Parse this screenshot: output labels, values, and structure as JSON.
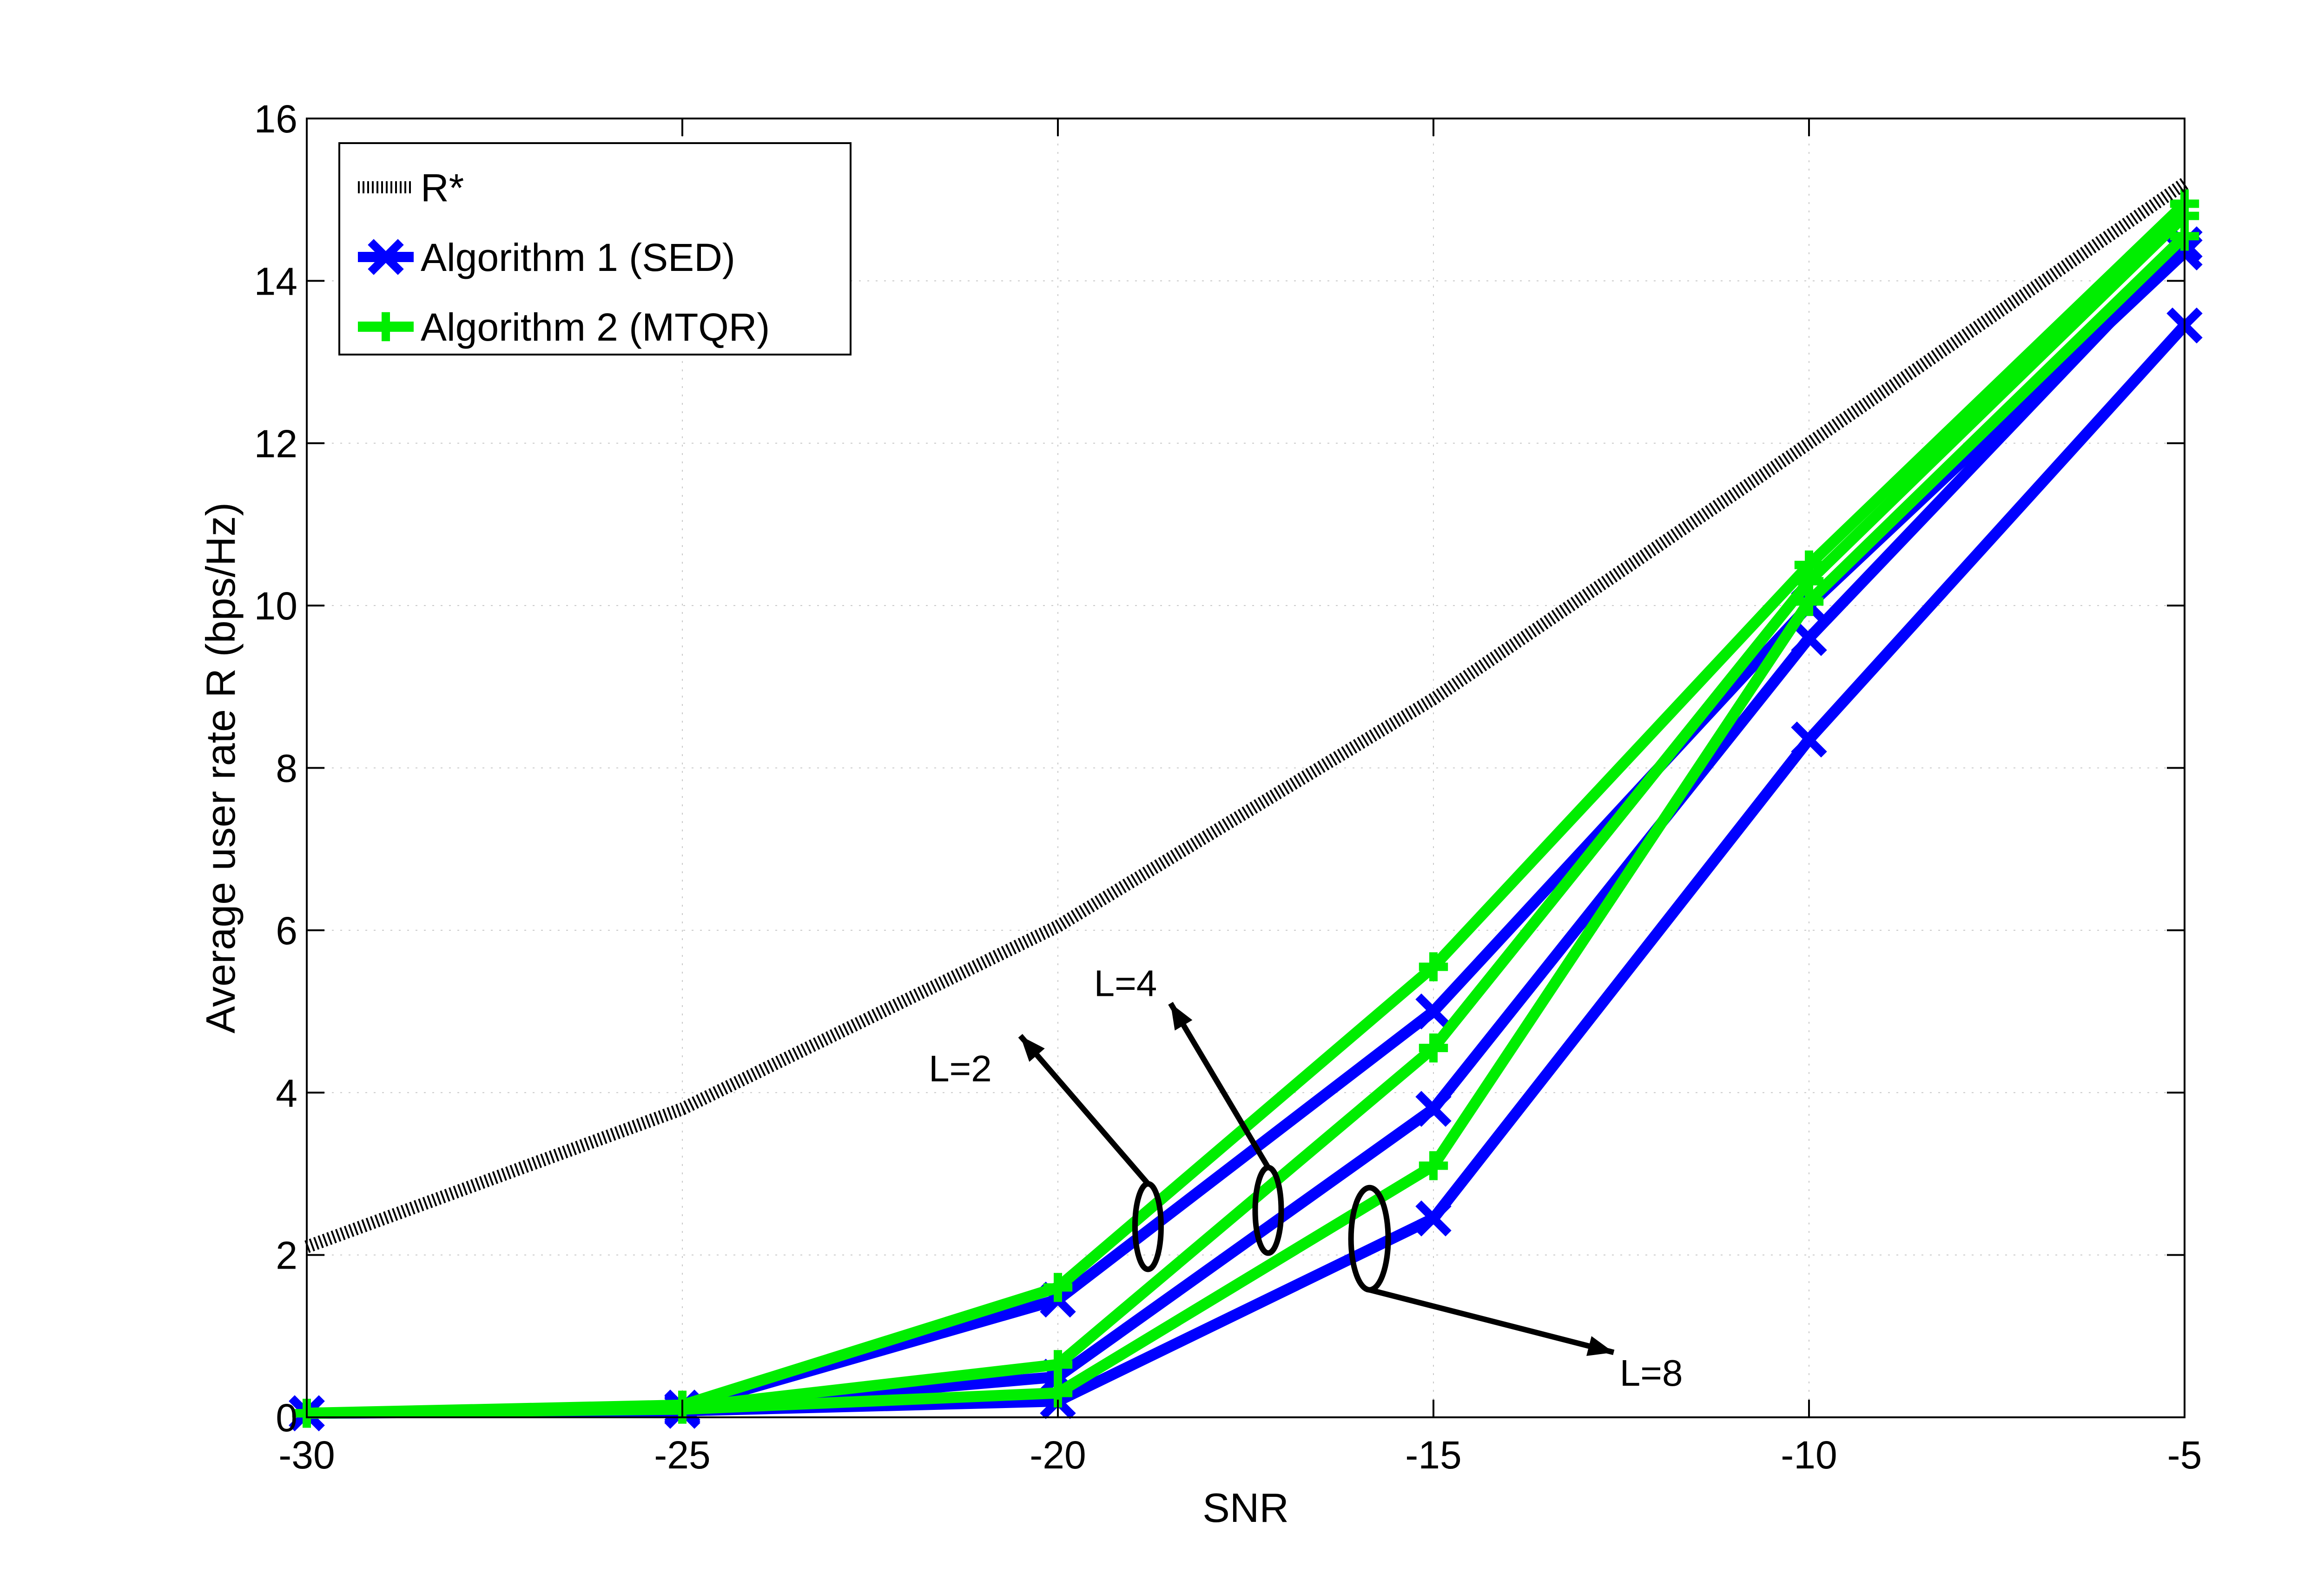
{
  "chart_data": {
    "type": "line",
    "title": "",
    "xlabel": "SNR",
    "ylabel": "Average user rate R (bps/Hz)",
    "xlim": [
      -30,
      -5
    ],
    "ylim": [
      0,
      16
    ],
    "xticks": [
      -30,
      -25,
      -20,
      -15,
      -10,
      -5
    ],
    "xtick_labels": [
      "-30",
      "-25",
      "-20",
      "-15",
      "-10",
      "-5"
    ],
    "yticks": [
      0,
      2,
      4,
      6,
      8,
      10,
      12,
      14,
      16
    ],
    "ytick_labels": [
      "0",
      "2",
      "4",
      "6",
      "8",
      "10",
      "12",
      "14",
      "16"
    ],
    "grid": true,
    "legend_position": "top-left",
    "x": [
      -30,
      -25,
      -20,
      -15,
      -10,
      -5
    ],
    "series": [
      {
        "name": "R*",
        "legend": true,
        "style": "dotted",
        "marker": "none",
        "color": "#000000",
        "values": [
          2.1,
          3.8,
          6.05,
          8.85,
          12.0,
          15.2
        ]
      },
      {
        "name": "Algorithm  1 (SED)",
        "L": 2,
        "legend": true,
        "style": "solid",
        "marker": "x",
        "color": "#0000ff",
        "values": [
          0.05,
          0.12,
          1.45,
          5.0,
          10.0,
          14.35
        ]
      },
      {
        "name": "Algorithm  1 (SED)",
        "L": 4,
        "legend": false,
        "style": "solid",
        "marker": "x",
        "color": "#0000ff",
        "values": [
          0.05,
          0.1,
          0.5,
          3.8,
          9.6,
          14.45
        ]
      },
      {
        "name": "Algorithm  1 (SED)",
        "L": 8,
        "legend": false,
        "style": "solid",
        "marker": "x",
        "color": "#0000ff",
        "values": [
          0.05,
          0.08,
          0.2,
          2.45,
          8.35,
          13.45
        ]
      },
      {
        "name": "Algorithm 2 (MTQR)",
        "L": 2,
        "legend": true,
        "style": "solid",
        "marker": "+",
        "color": "#00ee00",
        "values": [
          0.05,
          0.15,
          1.6,
          5.55,
          10.5,
          14.95
        ]
      },
      {
        "name": "Algorithm 2 (MTQR)",
        "L": 4,
        "legend": false,
        "style": "solid",
        "marker": "+",
        "color": "#00ee00",
        "values": [
          0.05,
          0.12,
          0.65,
          4.55,
          10.3,
          14.8
        ]
      },
      {
        "name": "Algorithm 2 (MTQR)",
        "L": 8,
        "legend": false,
        "style": "solid",
        "marker": "+",
        "color": "#00ee00",
        "values": [
          0.05,
          0.1,
          0.3,
          3.1,
          10.05,
          14.55
        ]
      }
    ],
    "legend": [
      "R*",
      "Algorithm  1 (SED)",
      "Algorithm 2 (MTQR)"
    ],
    "annotations": [
      {
        "text": "L=2",
        "ellipse_center": [
          -18.8,
          2.35
        ],
        "arrow_tip": [
          -20.5,
          4.7
        ],
        "text_anchor": [
          -21.3,
          4.3
        ]
      },
      {
        "text": "L=4",
        "ellipse_center": [
          -17.2,
          2.55
        ],
        "arrow_tip": [
          -18.5,
          5.1
        ],
        "text_anchor": [
          -19.1,
          5.35
        ]
      },
      {
        "text": "L=8",
        "ellipse_center": [
          -15.85,
          2.2
        ],
        "arrow_tip": [
          -12.6,
          0.8
        ],
        "text_anchor": [
          -12.1,
          0.55
        ]
      }
    ]
  }
}
